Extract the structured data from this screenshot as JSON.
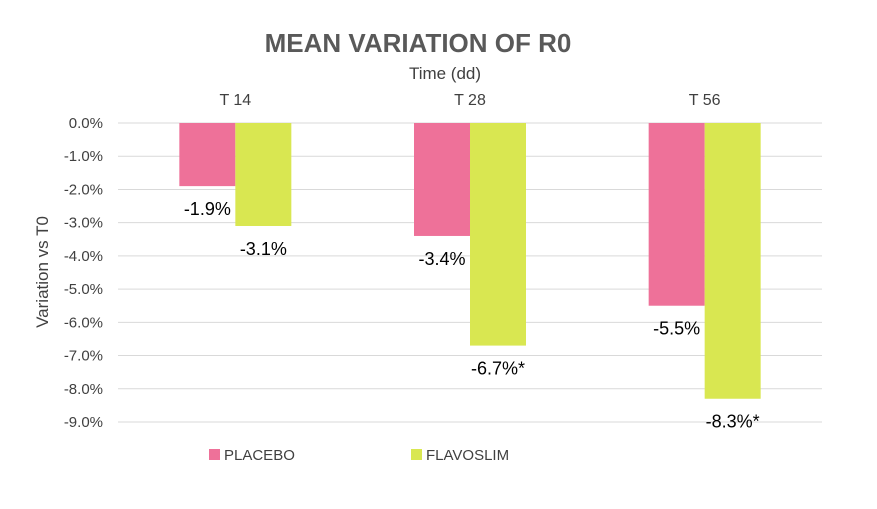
{
  "chart_data": {
    "type": "bar",
    "title": "MEAN VARIATION OF R0",
    "xlabel": "Time (dd)",
    "ylabel": "Variation vs T0",
    "categories": [
      "T 14",
      "T 28",
      "T 56"
    ],
    "series": [
      {
        "name": "PLACEBO",
        "color": "#ee7199",
        "values": [
          -1.9,
          -3.4,
          -5.5
        ],
        "labels": [
          "-1.9%",
          "-3.4%",
          "-5.5%"
        ]
      },
      {
        "name": "FLAVOSLIM",
        "color": "#d9e751",
        "values": [
          -3.1,
          -6.7,
          -8.3
        ],
        "labels": [
          "-3.1%",
          "-6.7%*",
          "-8.3%*"
        ]
      }
    ],
    "ylim": [
      -9,
      0
    ],
    "yticks": [
      "0.0%",
      "-1.0%",
      "-2.0%",
      "-3.0%",
      "-4.0%",
      "-5.0%",
      "-6.0%",
      "-7.0%",
      "-8.0%",
      "-9.0%"
    ],
    "category_axis": "top",
    "grid": true,
    "legend": "bottom"
  }
}
